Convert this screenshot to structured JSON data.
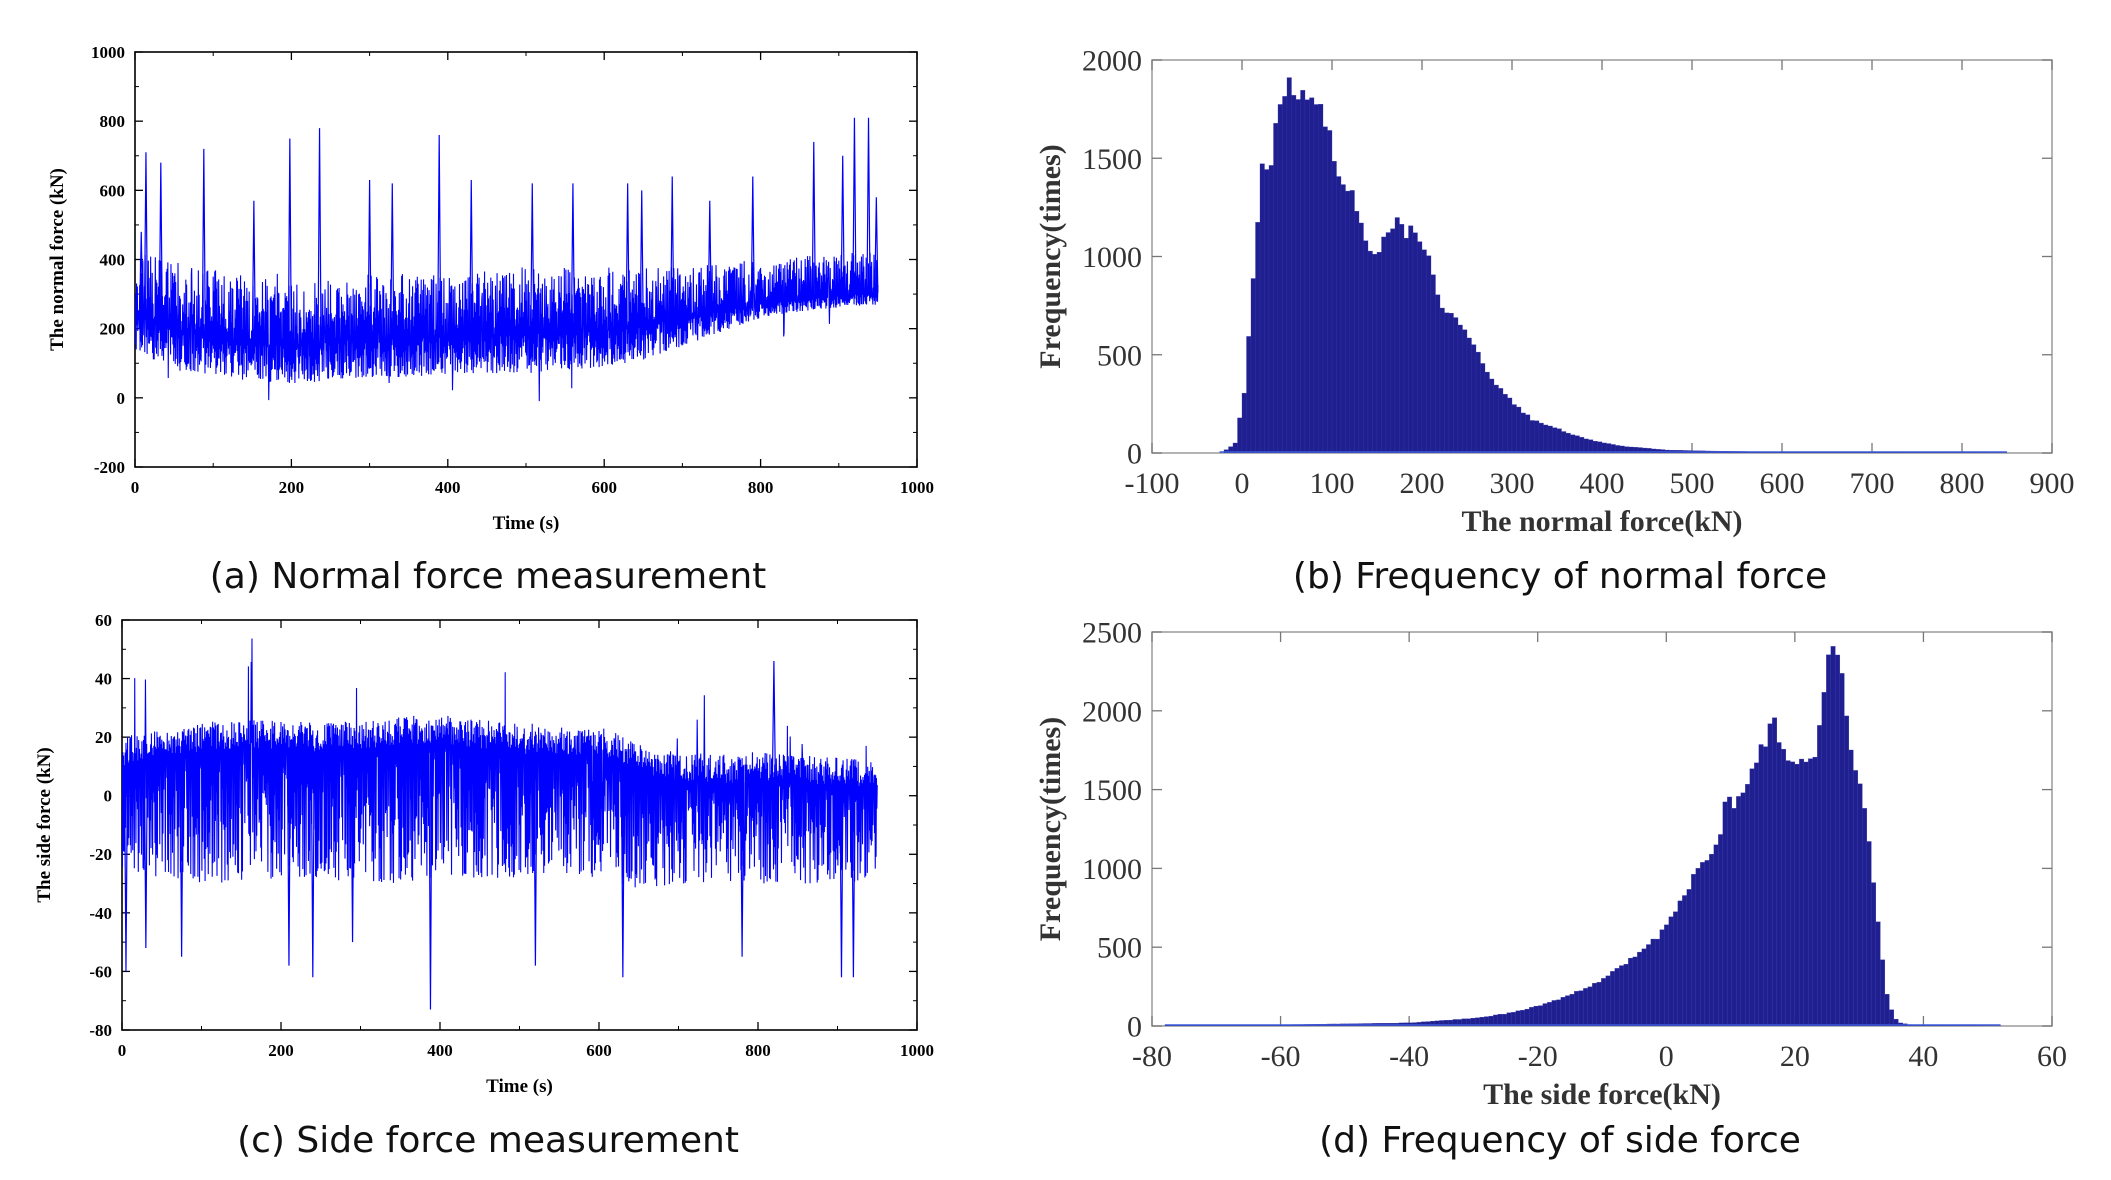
{
  "chart_data": [
    {
      "id": "a",
      "type": "line",
      "caption": "(a) Normal force measurement",
      "xlabel": "Time (s)",
      "ylabel": "The normal force (kN)",
      "xlim": [
        0,
        1000
      ],
      "ylim": [
        -200,
        1000
      ],
      "xticks": [
        0,
        200,
        400,
        600,
        800,
        1000
      ],
      "yticks": [
        -200,
        0,
        200,
        400,
        600,
        800,
        1000
      ],
      "color": "#0000ff",
      "series": [
        {
          "x": [
            0,
            50,
            100,
            150,
            200,
            250,
            300,
            350,
            400,
            450,
            500,
            550,
            600,
            650,
            700,
            750,
            800,
            850,
            900,
            950
          ],
          "min": [
            130,
            90,
            60,
            50,
            40,
            50,
            60,
            60,
            70,
            70,
            70,
            80,
            90,
            110,
            150,
            190,
            230,
            250,
            260,
            270
          ],
          "max": [
            420,
            400,
            370,
            350,
            330,
            340,
            360,
            360,
            360,
            370,
            380,
            380,
            380,
            380,
            380,
            390,
            400,
            410,
            420,
            420
          ],
          "typical": [
            240,
            200,
            170,
            160,
            150,
            160,
            170,
            170,
            175,
            180,
            185,
            190,
            195,
            210,
            230,
            250,
            270,
            285,
            295,
            305
          ],
          "spikes": [
            [
              8,
              480
            ],
            [
              14,
              710
            ],
            [
              33,
              680
            ],
            [
              88,
              720
            ],
            [
              152,
              570
            ],
            [
              198,
              750
            ],
            [
              236,
              780
            ],
            [
              300,
              630
            ],
            [
              329,
              620
            ],
            [
              389,
              760
            ],
            [
              430,
              630
            ],
            [
              508,
              620
            ],
            [
              560,
              620
            ],
            [
              630,
              620
            ],
            [
              648,
              600
            ],
            [
              687,
              640
            ],
            [
              735,
              570
            ],
            [
              790,
              640
            ],
            [
              868,
              740
            ],
            [
              905,
              700
            ],
            [
              920,
              810
            ],
            [
              938,
              810
            ],
            [
              948,
              580
            ]
          ]
        }
      ]
    },
    {
      "id": "b",
      "type": "bar",
      "caption": "(b) Frequency of normal force",
      "xlabel": "The normal force(kN)",
      "ylabel": "Frequency(times)",
      "xlim": [
        -100,
        900
      ],
      "ylim": [
        0,
        2000
      ],
      "xticks": [
        -100,
        0,
        100,
        200,
        300,
        400,
        500,
        600,
        700,
        800,
        900
      ],
      "yticks": [
        0,
        500,
        1000,
        1500,
        2000
      ],
      "color": "#1f1f8f",
      "bin_width": 5,
      "series": [
        {
          "x": [
            -25,
            -10,
            0,
            10,
            20,
            30,
            40,
            50,
            60,
            70,
            80,
            90,
            100,
            110,
            120,
            130,
            140,
            150,
            160,
            170,
            180,
            190,
            200,
            210,
            220,
            230,
            240,
            250,
            260,
            270,
            280,
            300,
            320,
            350,
            380,
            420,
            470,
            520,
            600,
            700,
            800,
            850
          ],
          "values": [
            0,
            50,
            300,
            900,
            1450,
            1500,
            1800,
            1900,
            1750,
            1850,
            1800,
            1700,
            1500,
            1350,
            1300,
            1150,
            1000,
            1050,
            1100,
            1200,
            1100,
            1150,
            1050,
            900,
            750,
            700,
            650,
            600,
            500,
            400,
            350,
            250,
            170,
            120,
            70,
            35,
            15,
            10,
            5,
            3,
            2,
            0
          ]
        }
      ]
    },
    {
      "id": "c",
      "type": "line",
      "caption": "(c) Side force measurement",
      "xlabel": "Time (s)",
      "ylabel": "The side force (kN)",
      "xlim": [
        0,
        1000
      ],
      "ylim": [
        -80,
        60
      ],
      "xticks": [
        0,
        200,
        400,
        600,
        800,
        1000
      ],
      "yticks": [
        -80,
        -60,
        -40,
        -20,
        0,
        20,
        40,
        60
      ],
      "color": "#0000ff",
      "series": [
        {
          "x": [
            0,
            50,
            100,
            150,
            200,
            250,
            300,
            350,
            400,
            450,
            500,
            550,
            600,
            650,
            700,
            750,
            800,
            850,
            900,
            950
          ],
          "min": [
            -25,
            -28,
            -30,
            -30,
            -28,
            -28,
            -30,
            -30,
            -28,
            -28,
            -28,
            -28,
            -28,
            -32,
            -30,
            -30,
            -30,
            -30,
            -30,
            -30
          ],
          "max": [
            20,
            23,
            25,
            26,
            26,
            25,
            26,
            27,
            28,
            26,
            25,
            24,
            24,
            18,
            15,
            14,
            15,
            14,
            13,
            12
          ],
          "typical": [
            10,
            14,
            15,
            16,
            16,
            15,
            16,
            17,
            18,
            16,
            15,
            14,
            14,
            8,
            5,
            4,
            5,
            4,
            3,
            3
          ],
          "spikes": [
            [
              5,
              -60
            ],
            [
              30,
              -52
            ],
            [
              75,
              -55
            ],
            [
              210,
              -58
            ],
            [
              240,
              -62
            ],
            [
              290,
              -50
            ],
            [
              388,
              -73
            ],
            [
              520,
              -58
            ],
            [
              630,
              -62
            ],
            [
              780,
              -55
            ],
            [
              820,
              46
            ],
            [
              905,
              -62
            ],
            [
              920,
              -62
            ]
          ]
        }
      ]
    },
    {
      "id": "d",
      "type": "bar",
      "caption": "(d) Frequency of side force",
      "xlabel": "The side force(kN)",
      "ylabel": "Frequency(times)",
      "xlim": [
        -80,
        60
      ],
      "ylim": [
        0,
        2500
      ],
      "xticks": [
        -80,
        -60,
        -40,
        -20,
        0,
        20,
        40,
        60
      ],
      "yticks": [
        0,
        500,
        1000,
        1500,
        2000,
        2500
      ],
      "color": "#1f1f8f",
      "bin_width": 0.7,
      "series": [
        {
          "x": [
            -78,
            -60,
            -40,
            -30,
            -25,
            -20,
            -15,
            -10,
            -5,
            -2,
            0,
            2,
            4,
            6,
            8,
            9,
            10,
            12,
            14,
            15,
            16,
            17,
            18,
            20,
            22,
            23,
            24,
            25,
            26,
            27,
            28,
            29,
            30,
            31,
            32,
            33,
            34,
            35,
            36,
            38,
            45,
            52
          ],
          "values": [
            5,
            8,
            20,
            50,
            80,
            130,
            200,
            300,
            450,
            550,
            650,
            800,
            950,
            1050,
            1150,
            1450,
            1400,
            1500,
            1700,
            1800,
            2000,
            1800,
            1700,
            1650,
            1700,
            1750,
            2000,
            2400,
            2450,
            2300,
            1800,
            1600,
            1550,
            1200,
            900,
            500,
            200,
            60,
            20,
            5,
            2,
            0
          ]
        }
      ]
    }
  ]
}
